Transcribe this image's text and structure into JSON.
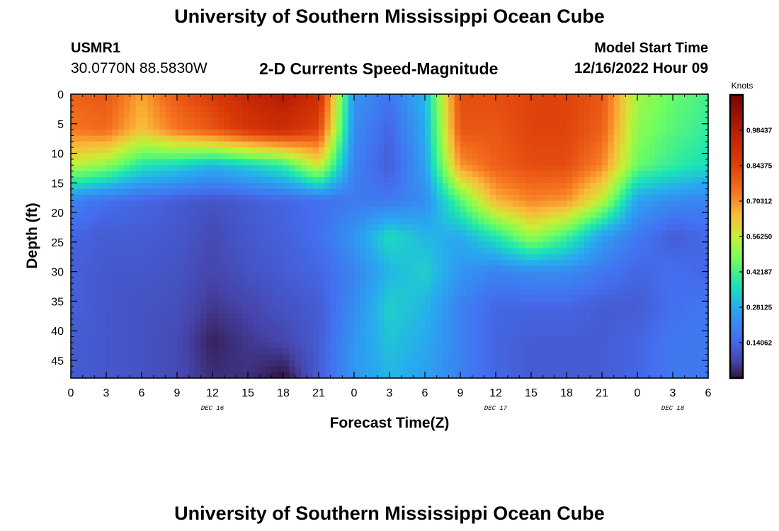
{
  "header": {
    "title": "University of Southern Mississippi Ocean Cube",
    "station_name": "USMR1",
    "coords": "30.0770N  88.5830W",
    "plot_title": "2-D Currents Speed-Magnitude",
    "model_start_label": "Model Start Time",
    "model_start_time": "12/16/2022 Hour 09"
  },
  "footer": {
    "title": "University of Southern Mississippi Ocean Cube"
  },
  "chart_data": {
    "type": "heatmap",
    "title": "2-D Currents Speed-Magnitude",
    "xlabel": "Forecast Time(Z)",
    "ylabel": "Depth (ft)",
    "x_tick_labels": [
      "0",
      "3",
      "6",
      "9",
      "12",
      "15",
      "18",
      "21",
      "0",
      "3",
      "6",
      "9",
      "12",
      "15",
      "18",
      "21",
      "0",
      "3",
      "6"
    ],
    "x_hours": [
      0,
      3,
      6,
      9,
      12,
      15,
      18,
      21,
      24,
      27,
      30,
      33,
      36,
      39,
      42,
      45,
      48,
      51,
      54
    ],
    "xlim_hours": [
      0,
      54
    ],
    "day_labels": [
      {
        "label": "DEC 16",
        "hour": 12
      },
      {
        "label": "DEC 17",
        "hour": 36
      },
      {
        "label": "DEC 18",
        "hour": 51
      }
    ],
    "y_ticks": [
      0,
      5,
      10,
      15,
      20,
      25,
      30,
      35,
      40,
      45
    ],
    "ylim": [
      0,
      48
    ],
    "y_inverted": true,
    "colorbar": {
      "label": "Knots",
      "tick_values": [
        0.14062,
        0.28125,
        0.42187,
        0.5625,
        0.70312,
        0.84375,
        0.98437
      ],
      "tick_labels": [
        "0.14062",
        "0.28125",
        "0.42187",
        "0.56250",
        "0.70312",
        "0.84375",
        "0.98437"
      ],
      "range": [
        0,
        1.125
      ]
    },
    "grid_hours": [
      0,
      3,
      6,
      9,
      12,
      15,
      18,
      21,
      24,
      27,
      30,
      33,
      36,
      39,
      42,
      45,
      48,
      51,
      54
    ],
    "grid_depths": [
      0,
      6,
      12,
      18,
      24,
      30,
      36,
      42,
      48
    ],
    "speed_grid": [
      [
        0.78,
        0.8,
        0.68,
        0.8,
        0.86,
        0.95,
        1.0,
        0.92,
        0.24,
        0.17,
        0.3,
        0.82,
        0.82,
        0.84,
        0.84,
        0.8,
        0.52,
        0.46,
        0.42
      ],
      [
        0.74,
        0.76,
        0.64,
        0.74,
        0.8,
        0.88,
        0.92,
        0.84,
        0.22,
        0.14,
        0.28,
        0.8,
        0.8,
        0.84,
        0.84,
        0.78,
        0.5,
        0.44,
        0.4
      ],
      [
        0.55,
        0.5,
        0.38,
        0.35,
        0.3,
        0.34,
        0.4,
        0.58,
        0.2,
        0.12,
        0.26,
        0.7,
        0.78,
        0.82,
        0.82,
        0.72,
        0.46,
        0.4,
        0.36
      ],
      [
        0.2,
        0.16,
        0.14,
        0.12,
        0.1,
        0.12,
        0.14,
        0.16,
        0.18,
        0.18,
        0.22,
        0.44,
        0.66,
        0.72,
        0.7,
        0.55,
        0.26,
        0.22,
        0.2
      ],
      [
        0.14,
        0.12,
        0.12,
        0.11,
        0.08,
        0.11,
        0.13,
        0.16,
        0.24,
        0.36,
        0.3,
        0.28,
        0.38,
        0.52,
        0.42,
        0.26,
        0.18,
        0.12,
        0.15
      ],
      [
        0.13,
        0.11,
        0.11,
        0.1,
        0.07,
        0.1,
        0.12,
        0.14,
        0.2,
        0.3,
        0.34,
        0.24,
        0.2,
        0.22,
        0.22,
        0.18,
        0.14,
        0.16,
        0.14
      ],
      [
        0.13,
        0.11,
        0.1,
        0.09,
        0.05,
        0.07,
        0.1,
        0.12,
        0.22,
        0.34,
        0.3,
        0.2,
        0.14,
        0.14,
        0.14,
        0.12,
        0.12,
        0.16,
        0.18
      ],
      [
        0.12,
        0.11,
        0.1,
        0.08,
        0.02,
        0.05,
        0.07,
        0.12,
        0.24,
        0.32,
        0.28,
        0.2,
        0.14,
        0.12,
        0.12,
        0.12,
        0.14,
        0.18,
        0.18
      ],
      [
        0.12,
        0.11,
        0.1,
        0.08,
        0.04,
        0.04,
        0.0,
        0.12,
        0.24,
        0.3,
        0.26,
        0.2,
        0.14,
        0.12,
        0.12,
        0.12,
        0.14,
        0.18,
        0.18
      ]
    ]
  }
}
